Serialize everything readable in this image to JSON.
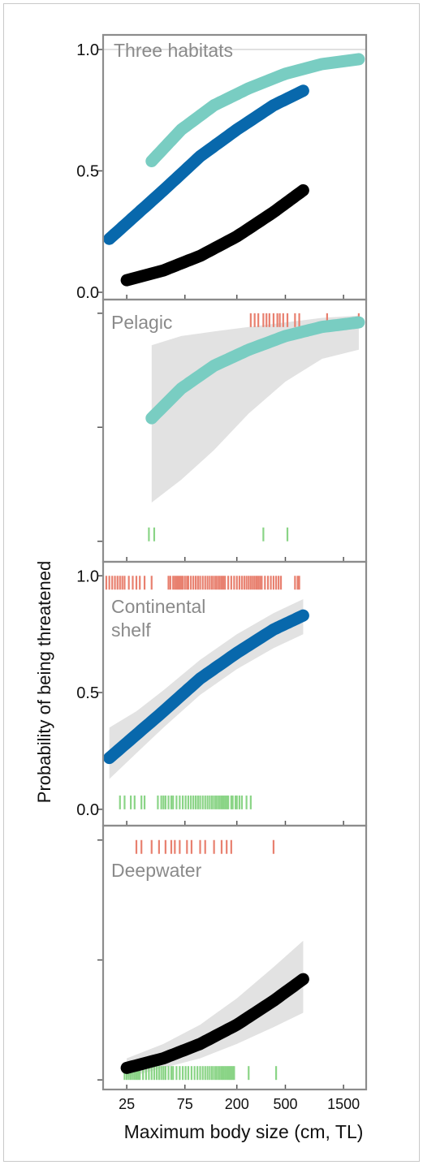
{
  "chart_data": {
    "type": "line",
    "ylabel": "Probability of being threatened",
    "xlabel": "Maximum body size (cm, TL)",
    "x_scale": "log",
    "xlim": [
      16,
      2300
    ],
    "x_ticks": [
      "25",
      "75",
      "200",
      "500",
      "1500"
    ],
    "x_tick_values": [
      25,
      75,
      200,
      500,
      1500
    ],
    "colors": {
      "pelagic": "#79cdc2",
      "continental_shelf": "#0868ac",
      "deepwater": "#000000",
      "threatened_rug": "#e8806f",
      "nonthreatened_rug": "#8ad486",
      "ci_band": "#e2e2e2",
      "panel_border": "#8c8c8c",
      "panel_title": "#8a8a8a"
    },
    "panels": [
      {
        "title": "Three habitats",
        "ylim": [
          -0.03,
          1.06
        ],
        "y_ticks": [
          "0.0",
          "0.5",
          "1.0"
        ],
        "y_tick_values": [
          0,
          0.5,
          1.0
        ],
        "top_line": true,
        "series": [
          {
            "key": "pelagic",
            "x": [
              40,
              70,
              130,
              250,
              500,
              1000,
              2000
            ],
            "y": [
              0.54,
              0.67,
              0.77,
              0.84,
              0.9,
              0.94,
              0.96
            ]
          },
          {
            "key": "continental_shelf",
            "x": [
              18,
              30,
              50,
              100,
              200,
              400,
              700
            ],
            "y": [
              0.22,
              0.32,
              0.42,
              0.56,
              0.67,
              0.77,
              0.83
            ]
          },
          {
            "key": "deepwater",
            "x": [
              25,
              50,
              100,
              200,
              400,
              700
            ],
            "y": [
              0.05,
              0.09,
              0.15,
              0.23,
              0.33,
              0.42
            ]
          }
        ]
      },
      {
        "title": "Pelagic",
        "ylim": [
          -0.09,
          1.06
        ],
        "y_ticks": [
          "",
          "",
          ""
        ],
        "y_tick_values": [
          0,
          0.5,
          1.0
        ],
        "series": [
          {
            "key": "pelagic",
            "x": [
              40,
              70,
              130,
              250,
              500,
              1000,
              2000
            ],
            "y": [
              0.54,
              0.67,
              0.77,
              0.84,
              0.9,
              0.94,
              0.96
            ]
          }
        ],
        "ci": {
          "x": [
            40,
            70,
            130,
            250,
            500,
            1000,
            2000
          ],
          "lo": [
            0.17,
            0.27,
            0.4,
            0.56,
            0.7,
            0.8,
            0.84
          ],
          "hi": [
            0.86,
            0.9,
            0.92,
            0.94,
            0.96,
            0.98,
            0.99
          ]
        },
        "rug_top": {
          "y": 1.0,
          "x": [
            260,
            280,
            300,
            330,
            350,
            370,
            400,
            430,
            450,
            480,
            520,
            600,
            650,
            1100,
            2000
          ]
        },
        "rug_bottom": {
          "y": 0.0,
          "x": [
            38,
            42,
            330,
            520
          ]
        }
      },
      {
        "title": "Continental shelf",
        "ylim": [
          -0.07,
          1.06
        ],
        "y_ticks": [
          "0.0",
          "0.5",
          "1.0"
        ],
        "y_tick_values": [
          0,
          0.5,
          1.0
        ],
        "series": [
          {
            "key": "continental_shelf",
            "x": [
              18,
              30,
              50,
              100,
              200,
              400,
              700
            ],
            "y": [
              0.22,
              0.32,
              0.42,
              0.56,
              0.67,
              0.77,
              0.83
            ]
          }
        ],
        "ci": {
          "x": [
            18,
            30,
            50,
            100,
            200,
            400,
            700
          ],
          "lo": [
            0.13,
            0.24,
            0.35,
            0.49,
            0.6,
            0.69,
            0.75
          ],
          "hi": [
            0.35,
            0.42,
            0.51,
            0.64,
            0.75,
            0.84,
            0.9
          ]
        },
        "rug_top": {
          "y": 1.0,
          "x": [
            17,
            18,
            19,
            20,
            21,
            22,
            23,
            24,
            26,
            28,
            30,
            32,
            35,
            40,
            55,
            57,
            60,
            62,
            64,
            66,
            68,
            70,
            72,
            75,
            78,
            80,
            84,
            88,
            92,
            96,
            100,
            105,
            110,
            115,
            120,
            125,
            130,
            135,
            140,
            145,
            150,
            155,
            160,
            170,
            180,
            190,
            200,
            210,
            220,
            230,
            240,
            250,
            260,
            270,
            280,
            290,
            300,
            310,
            320,
            340,
            360,
            380,
            400,
            420,
            440,
            460,
            600,
            630,
            650
          ]
        },
        "rug_bottom": {
          "y": 0.0,
          "x": [
            22,
            24,
            27,
            29,
            33,
            35,
            45,
            48,
            50,
            52,
            55,
            58,
            60,
            64,
            68,
            72,
            76,
            80,
            84,
            88,
            92,
            96,
            100,
            105,
            110,
            115,
            120,
            125,
            130,
            135,
            140,
            145,
            150,
            155,
            160,
            165,
            170,
            180,
            185,
            195,
            200,
            210,
            220,
            240,
            260
          ]
        }
      },
      {
        "title": "Deepwater",
        "ylim": [
          -0.04,
          1.06
        ],
        "y_ticks": [
          "",
          "",
          ""
        ],
        "y_tick_values": [
          0,
          0.5,
          1.0
        ],
        "series": [
          {
            "key": "deepwater",
            "x": [
              25,
              50,
              100,
              200,
              400,
              700
            ],
            "y": [
              0.05,
              0.09,
              0.15,
              0.23,
              0.33,
              0.42
            ]
          }
        ],
        "ci": {
          "x": [
            25,
            50,
            100,
            200,
            400,
            700
          ],
          "lo": [
            0.01,
            0.05,
            0.09,
            0.15,
            0.22,
            0.28
          ],
          "hi": [
            0.09,
            0.15,
            0.23,
            0.34,
            0.47,
            0.58
          ]
        },
        "rug_top": {
          "y": 1.0,
          "x": [
            30,
            33,
            40,
            46,
            52,
            58,
            62,
            68,
            78,
            85,
            100,
            110,
            130,
            150,
            165,
            180,
            400
          ]
        },
        "rug_bottom": {
          "y": 0.0,
          "x": [
            24,
            25,
            26,
            27,
            28,
            29,
            30,
            31,
            32,
            34,
            36,
            38,
            40,
            42,
            44,
            46,
            48,
            50,
            52,
            55,
            58,
            60,
            64,
            68,
            72,
            76,
            80,
            85,
            90,
            95,
            100,
            105,
            110,
            115,
            120,
            125,
            130,
            135,
            140,
            145,
            150,
            155,
            160,
            165,
            170,
            175,
            180,
            185,
            190,
            250,
            420
          ]
        }
      }
    ]
  }
}
